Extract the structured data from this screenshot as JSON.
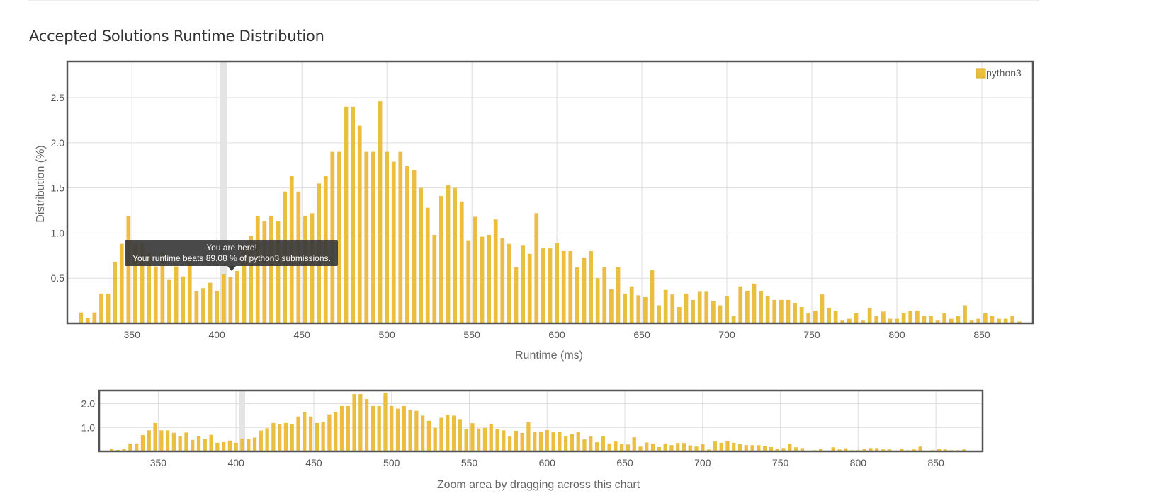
{
  "page": {
    "section_title": "Accepted Solutions Runtime Distribution"
  },
  "colors": {
    "bar": "#ebbd40",
    "grid": "#dddddd",
    "frame": "#555555",
    "highlight": "#e4e4e4",
    "tooltip_bg": "#3a3a3a"
  },
  "tooltip": {
    "line1": "You are here!",
    "line2": "Your runtime beats 89.08 % of python3 submissions."
  },
  "navigator": {
    "caption": "Zoom area by dragging across this chart"
  },
  "chart_data": [
    {
      "type": "bar",
      "title": "",
      "xlabel": "Runtime (ms)",
      "ylabel": "Distribution (%)",
      "xlim": [
        312,
        880
      ],
      "ylim": [
        0,
        2.9
      ],
      "x_ticks": [
        350,
        400,
        450,
        500,
        550,
        600,
        650,
        700,
        750,
        800,
        850
      ],
      "y_ticks": [
        0.5,
        1.0,
        1.5,
        2.0,
        2.5
      ],
      "y_tick_labels": [
        "0.5",
        "1.0",
        "1.5",
        "2.0",
        "2.5"
      ],
      "grid": true,
      "legend": {
        "position": "top-right",
        "entries": [
          "python3"
        ]
      },
      "highlight_runtime": 404,
      "series": [
        {
          "name": "python3",
          "x": [
            320,
            324,
            328,
            332,
            336,
            340,
            344,
            348,
            352,
            356,
            360,
            364,
            368,
            372,
            376,
            380,
            384,
            388,
            392,
            396,
            400,
            404,
            408,
            412,
            416,
            420,
            424,
            428,
            432,
            436,
            440,
            444,
            448,
            452,
            456,
            460,
            464,
            468,
            472,
            476,
            480,
            484,
            488,
            492,
            496,
            500,
            504,
            508,
            512,
            516,
            520,
            524,
            528,
            532,
            536,
            540,
            544,
            548,
            552,
            556,
            560,
            564,
            568,
            572,
            576,
            580,
            584,
            588,
            592,
            596,
            600,
            604,
            608,
            612,
            616,
            620,
            624,
            628,
            632,
            636,
            640,
            644,
            648,
            652,
            656,
            660,
            664,
            668,
            672,
            676,
            680,
            684,
            688,
            692,
            696,
            700,
            704,
            708,
            712,
            716,
            720,
            724,
            728,
            732,
            736,
            740,
            744,
            748,
            752,
            756,
            760,
            764,
            768,
            772,
            776,
            780,
            784,
            788,
            792,
            796,
            800,
            804,
            808,
            812,
            816,
            820,
            824,
            828,
            832,
            836,
            840,
            844,
            848,
            852,
            856,
            860,
            864,
            868,
            872
          ],
          "values": [
            0.12,
            0.06,
            0.12,
            0.33,
            0.33,
            0.68,
            0.88,
            1.19,
            0.88,
            0.88,
            0.78,
            0.63,
            0.79,
            0.48,
            0.63,
            0.52,
            0.69,
            0.36,
            0.39,
            0.45,
            0.36,
            0.54,
            0.51,
            0.58,
            0.87,
            0.97,
            1.19,
            1.13,
            1.19,
            1.13,
            1.46,
            1.63,
            1.46,
            1.19,
            1.22,
            1.55,
            1.63,
            1.9,
            1.9,
            2.4,
            2.4,
            2.19,
            1.9,
            1.9,
            2.46,
            1.9,
            1.79,
            1.9,
            1.74,
            1.7,
            1.5,
            1.28,
            0.98,
            1.41,
            1.53,
            1.5,
            1.35,
            0.92,
            1.18,
            0.96,
            0.98,
            1.15,
            0.94,
            0.88,
            0.62,
            0.86,
            0.77,
            1.22,
            0.83,
            0.83,
            0.89,
            0.8,
            0.8,
            0.62,
            0.73,
            0.8,
            0.5,
            0.62,
            0.38,
            0.62,
            0.33,
            0.41,
            0.31,
            0.29,
            0.59,
            0.2,
            0.37,
            0.32,
            0.18,
            0.33,
            0.26,
            0.35,
            0.35,
            0.25,
            0.2,
            0.3,
            0.08,
            0.41,
            0.36,
            0.44,
            0.36,
            0.3,
            0.26,
            0.26,
            0.26,
            0.22,
            0.18,
            0.11,
            0.14,
            0.32,
            0.17,
            0.14,
            0.03,
            0.05,
            0.11,
            0.03,
            0.17,
            0.08,
            0.13,
            0.05,
            0.05,
            0.11,
            0.14,
            0.14,
            0.08,
            0.08,
            0.03,
            0.11,
            0.05,
            0.08,
            0.2,
            0.03,
            0.05,
            0.11,
            0.08,
            0.05,
            0.05,
            0.08,
            0.02
          ]
        }
      ]
    },
    {
      "type": "bar",
      "title": "",
      "xlabel": "",
      "ylabel": "",
      "xlim": [
        312,
        880
      ],
      "ylim": [
        0,
        2.55
      ],
      "x_ticks": [
        350,
        400,
        450,
        500,
        550,
        600,
        650,
        700,
        750,
        800,
        850
      ],
      "y_ticks": [
        1.0,
        2.0
      ],
      "y_tick_labels": [
        "1.0",
        "2.0"
      ],
      "grid": true,
      "series_ref": "python3"
    }
  ]
}
